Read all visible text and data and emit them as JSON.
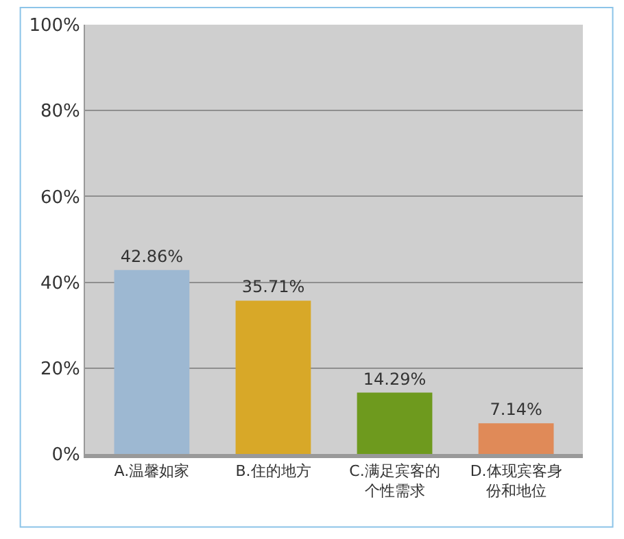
{
  "chart_data": {
    "type": "bar",
    "categories": [
      "A.温馨如家",
      "B.住的地方",
      "C.满足宾客的个性需求",
      "D.体现宾客身份和地位"
    ],
    "values": [
      42.86,
      35.71,
      14.29,
      7.14
    ],
    "colors": [
      "#9db8d2",
      "#d8a828",
      "#6e9a1e",
      "#e08a58"
    ],
    "value_labels": [
      "42.86%",
      "35.71%",
      "14.29%",
      "7.14%"
    ],
    "ylim": [
      0,
      100
    ],
    "yticks": [
      {
        "value": 0,
        "label": "0%"
      },
      {
        "value": 20,
        "label": "20%"
      },
      {
        "value": 40,
        "label": "40%"
      },
      {
        "value": 60,
        "label": "60%"
      },
      {
        "value": 80,
        "label": "80%"
      },
      {
        "value": 100,
        "label": "100%"
      }
    ],
    "grid": "y"
  }
}
